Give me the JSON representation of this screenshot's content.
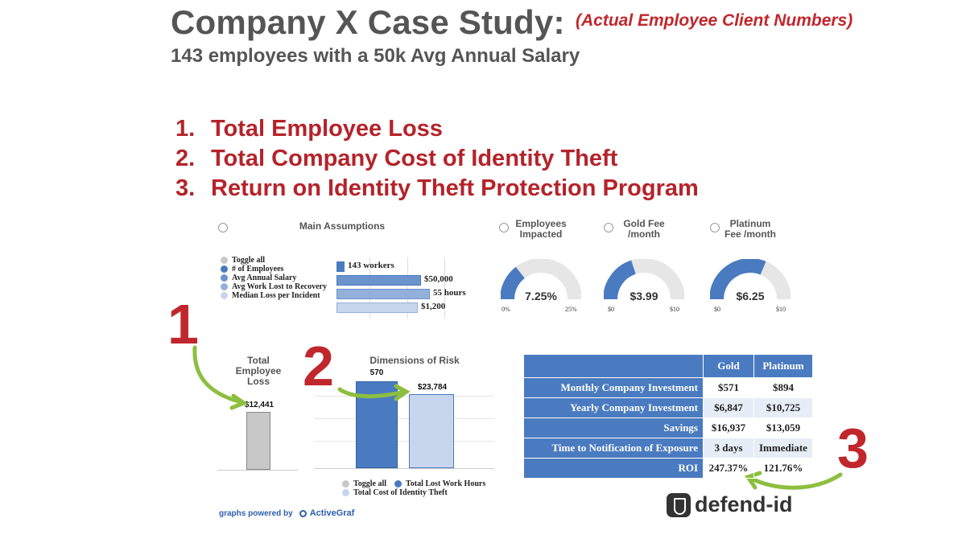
{
  "header": {
    "title": "Company X Case Study:",
    "note": "(Actual Employee Client Numbers)",
    "subtitle": "143 employees with a 50k Avg Annual Salary"
  },
  "goals": [
    {
      "num": "1.",
      "text": "Total Employee Loss"
    },
    {
      "num": "2.",
      "text": "Total Company Cost of Identity Theft"
    },
    {
      "num": "3.",
      "text": "Return on Identity Theft Protection Program"
    }
  ],
  "markers": {
    "one": "1",
    "two": "2",
    "three": "3"
  },
  "main_assumptions": {
    "title": "Main Assumptions",
    "legend": [
      "Toggle all",
      "# of Employees",
      "Avg Annual Salary",
      "Avg Work Lost to Recovery",
      "Median Loss per Incident"
    ],
    "bars": [
      {
        "label": "143 workers",
        "fraction": 0.09
      },
      {
        "label": "$50,000",
        "fraction": 0.95
      },
      {
        "label": "55 hours",
        "fraction": 1.05
      },
      {
        "label": "$1,200",
        "fraction": 0.92
      }
    ]
  },
  "gauges": [
    {
      "title_line1": "Employees",
      "title_line2": "Impacted",
      "value": "7.25%",
      "min": "0%",
      "max": "25%",
      "fraction": 0.29
    },
    {
      "title_line1": "Gold Fee",
      "title_line2": "/month",
      "value": "$3.99",
      "min": "$0",
      "max": "$10",
      "fraction": 0.399
    },
    {
      "title_line1": "Platinum",
      "title_line2": "Fee /month",
      "value": "$6.25",
      "min": "$0",
      "max": "$10",
      "fraction": 0.625
    }
  ],
  "chart_data": [
    {
      "type": "bar",
      "title": "Total Employee Loss",
      "categories": [
        ""
      ],
      "values": [
        12441
      ],
      "data_labels": [
        "$12,441"
      ]
    },
    {
      "type": "bar",
      "title": "Dimensions of Risk",
      "categories": [
        ""
      ],
      "series": [
        {
          "name": "Total Lost Work Hours",
          "values": [
            570
          ],
          "label": "570"
        },
        {
          "name": "Total Cost of Identity Theft",
          "values": [
            23784
          ],
          "label": "$23,784"
        }
      ],
      "legend": [
        "Toggle all",
        "Total Lost Work Hours",
        "Total Cost of Identity Theft"
      ]
    }
  ],
  "roi_table": {
    "headers": [
      "Gold",
      "Platinum"
    ],
    "rows": [
      {
        "label": "Monthly Company Investment",
        "gold": "$571",
        "platinum": "$894"
      },
      {
        "label": "Yearly Company Investment",
        "gold": "$6,847",
        "platinum": "$10,725"
      },
      {
        "label": "Savings",
        "gold": "$16,937",
        "platinum": "$13,059"
      },
      {
        "label": "Time to Notification of Exposure",
        "gold": "3 days",
        "platinum": "Immediate"
      },
      {
        "label": "ROI",
        "gold": "247.37%",
        "platinum": "121.76%"
      }
    ]
  },
  "footer": {
    "powered_by": "graphs powered by",
    "brand": "ActiveGraf"
  },
  "logo": {
    "text": "defend-id"
  },
  "colors": {
    "accent_red": "#b5232a",
    "chart_blue": "#4a7bc0",
    "light_blue": "#c7d6ec",
    "gray": "#c8c8c8"
  }
}
